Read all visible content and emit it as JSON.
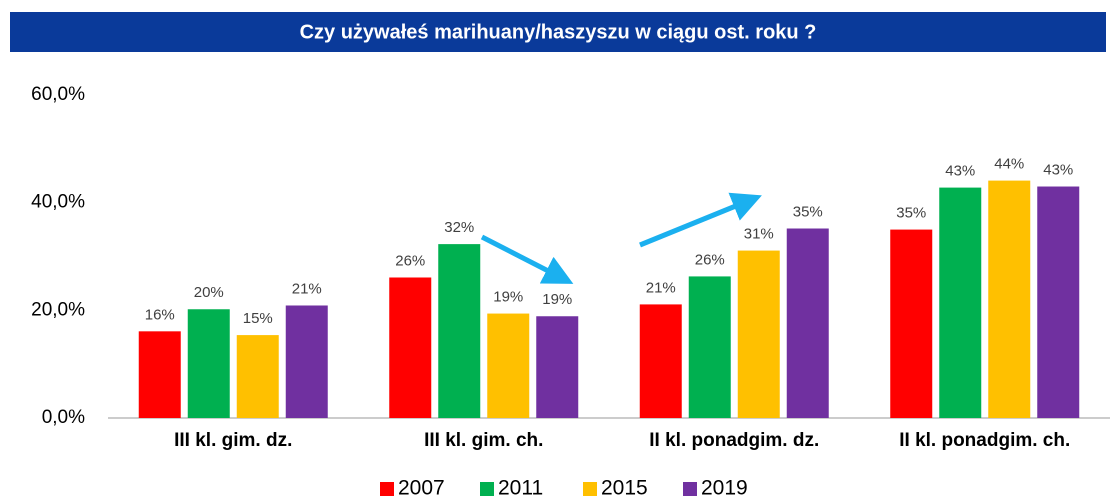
{
  "chart_data": {
    "type": "bar",
    "title": "Czy  używałeś marihuany/haszyszu w ciągu ost. roku ?",
    "categories": [
      "III kl. gim. dz.",
      "III kl. gim. ch.",
      "II kl. ponadgim. dz.",
      "II kl. ponadgim. ch."
    ],
    "series": [
      {
        "name": "2007",
        "color": "#ff0000",
        "values": [
          16.1,
          26.1,
          21.1,
          35.0
        ],
        "value_labels": [
          "16%",
          "26%",
          "21%",
          "35%"
        ]
      },
      {
        "name": "2011",
        "color": "#00b050",
        "values": [
          20.2,
          32.3,
          26.3,
          42.8
        ],
        "value_labels": [
          "20%",
          "32%",
          "26%",
          "43%"
        ]
      },
      {
        "name": "2015",
        "color": "#ffc000",
        "values": [
          15.4,
          19.4,
          31.1,
          44.1
        ],
        "value_labels": [
          "15%",
          "19%",
          "31%",
          "44%"
        ]
      },
      {
        "name": "2019",
        "color": "#7030a0",
        "values": [
          20.9,
          18.9,
          35.2,
          43.0
        ],
        "value_labels": [
          "21%",
          "19%",
          "35%",
          "43%"
        ]
      }
    ],
    "ylim": [
      0,
      60
    ],
    "yticks": [
      {
        "value": 0,
        "label": "0,0%"
      },
      {
        "value": 20,
        "label": "20,0%"
      },
      {
        "value": 40,
        "label": "40,0%"
      },
      {
        "value": 60,
        "label": "60,0%"
      }
    ],
    "grid": false,
    "legend": "bottom"
  }
}
